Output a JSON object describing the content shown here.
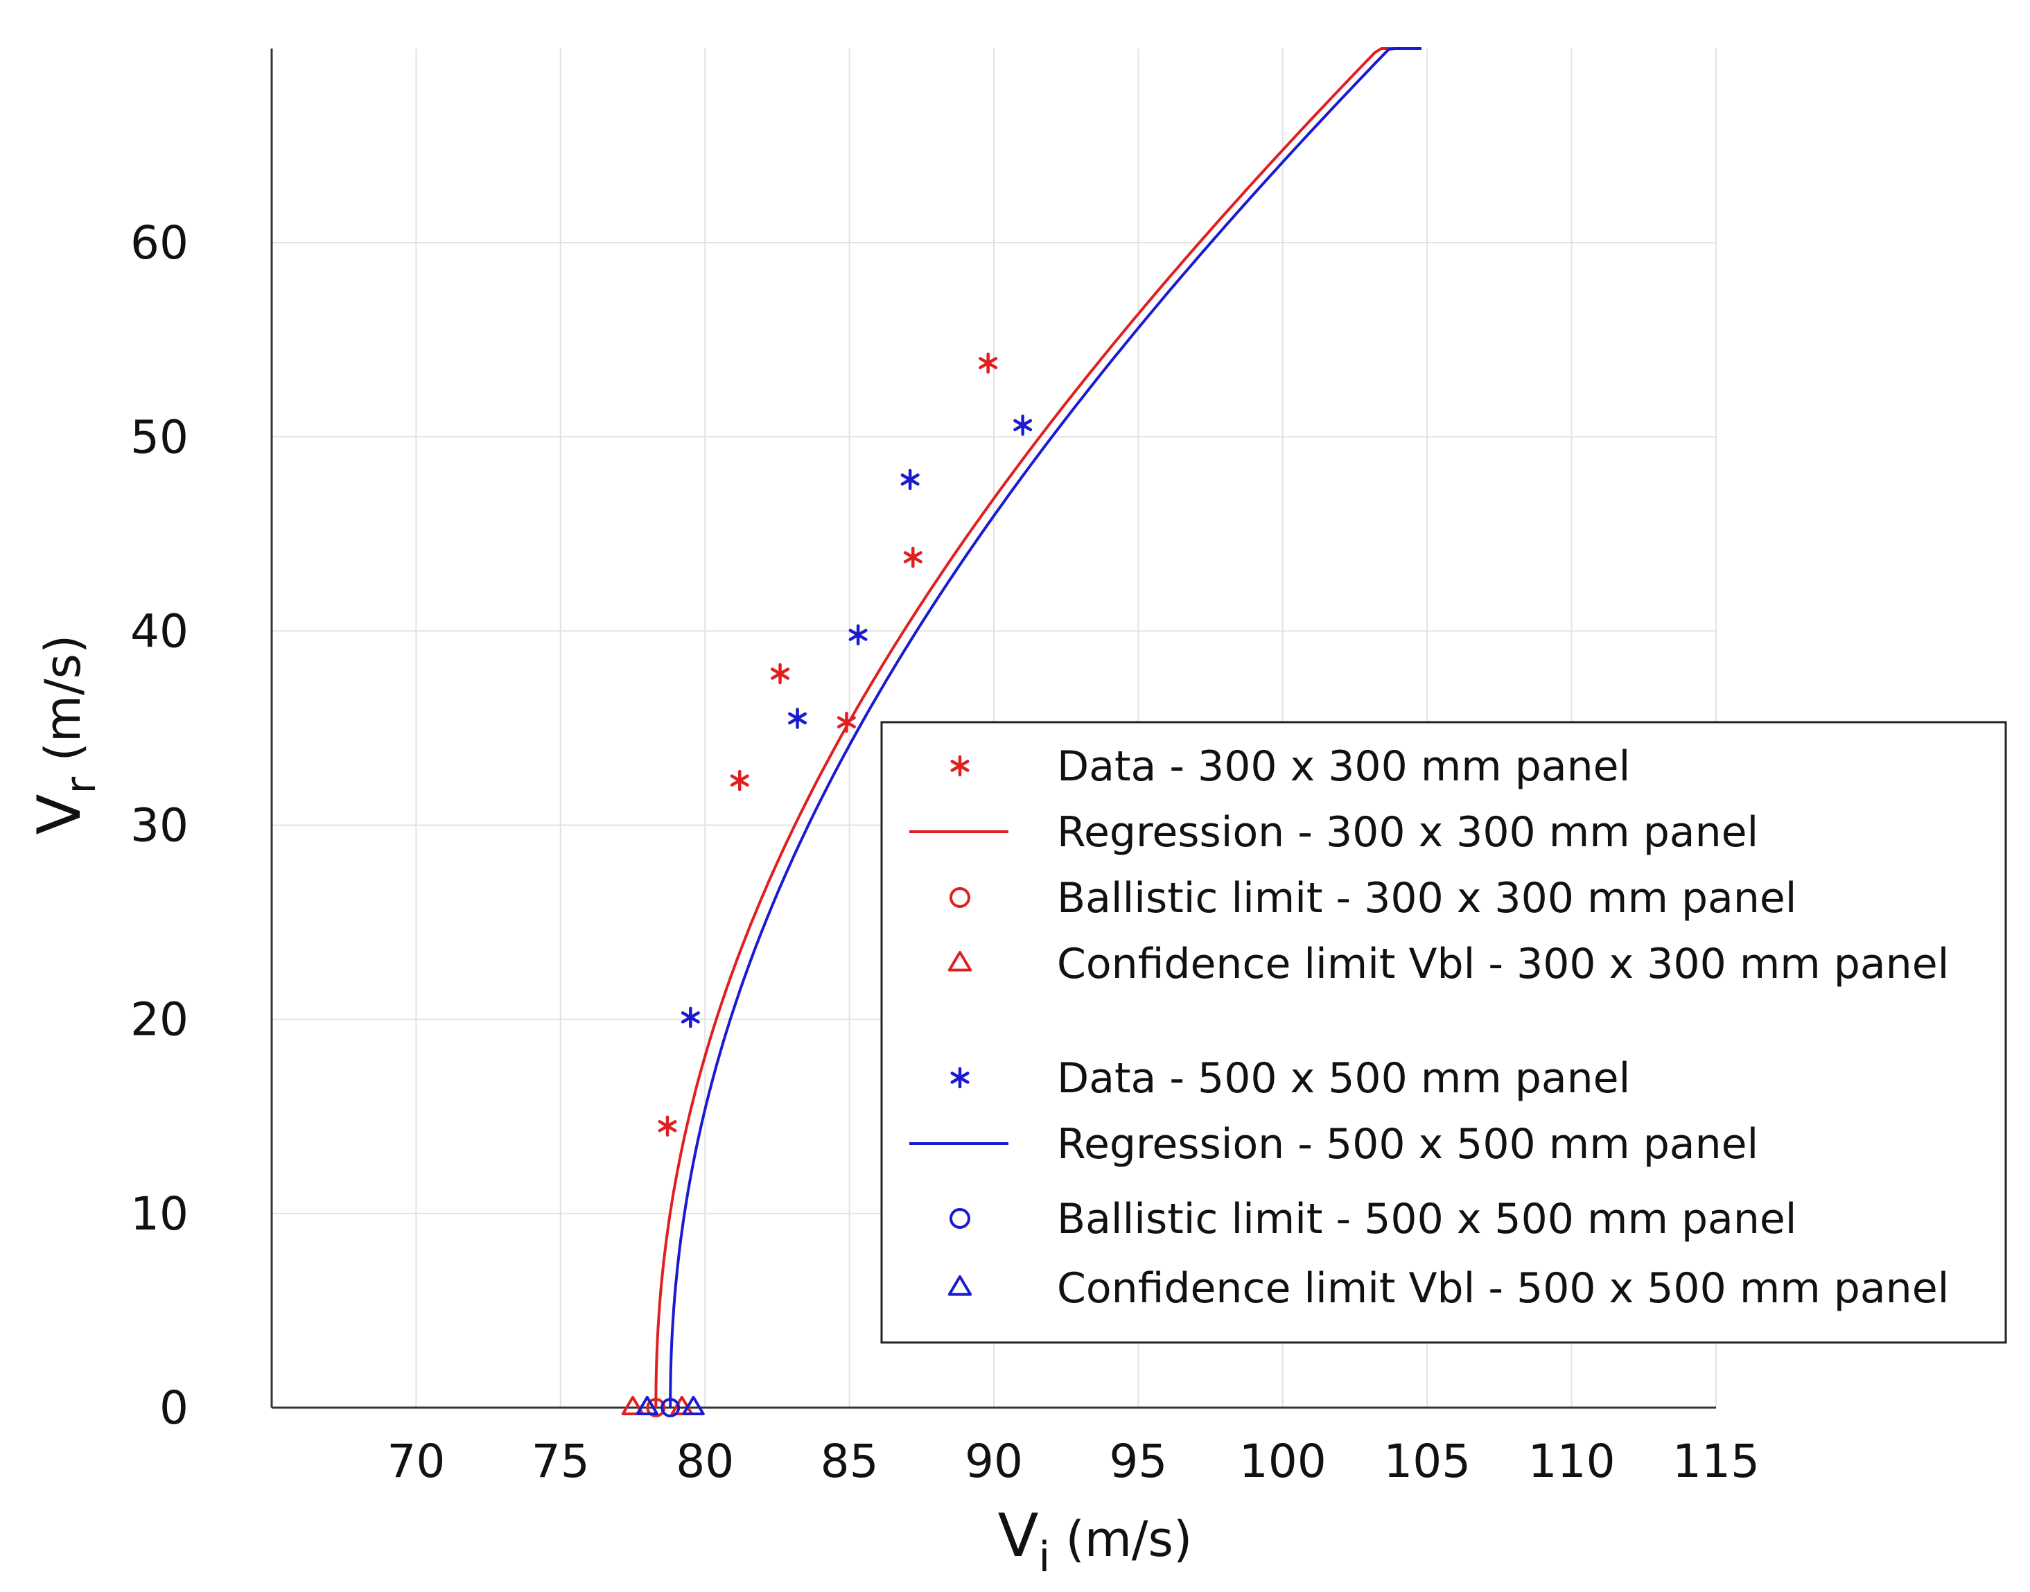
{
  "colors": {
    "series_300": "#e02020",
    "series_500": "#1a1ad0",
    "grid": "#e2e2e2",
    "axis": "#333333",
    "text": "#111111"
  },
  "chart_data": {
    "type": "scatter",
    "title": "",
    "xlabel": {
      "main": "V",
      "sub": "i",
      "unit": " (m/s)"
    },
    "ylabel": {
      "main": "V",
      "sub": "r",
      "unit": " (m/s)"
    },
    "xlim": [
      65,
      115
    ],
    "ylim": [
      0,
      70
    ],
    "x_ticks": [
      70,
      75,
      80,
      85,
      90,
      95,
      100,
      105,
      110,
      115
    ],
    "y_ticks": [
      0,
      10,
      20,
      30,
      40,
      50,
      60
    ],
    "grid": true,
    "legend_position": "lower-right",
    "series": [
      {
        "id": "data300",
        "name": "Data - 300 x 300 mm panel",
        "kind": "scatter",
        "marker": "asterisk",
        "color": "#e02020",
        "points": [
          [
            78.7,
            14.5
          ],
          [
            81.2,
            32.3
          ],
          [
            82.6,
            37.8
          ],
          [
            84.9,
            35.3
          ],
          [
            87.2,
            43.8
          ],
          [
            89.8,
            53.8
          ]
        ]
      },
      {
        "id": "reg300",
        "name": "Regression - 300 x 300 mm panel",
        "kind": "line",
        "color": "#e02020",
        "model": {
          "vbl": 78.3,
          "exponent": 2.1,
          "vi_max": 104.8
        }
      },
      {
        "id": "bl300",
        "name": "Ballistic limit - 300 x 300 mm panel",
        "kind": "scatter",
        "marker": "circle",
        "color": "#e02020",
        "points": [
          [
            78.3,
            0
          ]
        ]
      },
      {
        "id": "cl300",
        "name": "Confidence limit Vbl - 300 x 300 mm panel",
        "kind": "scatter",
        "marker": "triangle",
        "color": "#e02020",
        "points": [
          [
            77.5,
            0
          ],
          [
            79.2,
            0
          ]
        ]
      },
      {
        "id": "data500",
        "name": "Data - 500 x 500 mm panel",
        "kind": "scatter",
        "marker": "asterisk",
        "color": "#1a1ad0",
        "points": [
          [
            79.5,
            20.1
          ],
          [
            83.2,
            35.5
          ],
          [
            85.3,
            39.8
          ],
          [
            87.1,
            47.8
          ],
          [
            91.0,
            50.6
          ]
        ]
      },
      {
        "id": "reg500",
        "name": "Regression - 500 x 500 mm panel",
        "kind": "line",
        "color": "#1a1ad0",
        "model": {
          "vbl": 78.8,
          "exponent": 2.1,
          "vi_max": 104.8
        }
      },
      {
        "id": "bl500",
        "name": "Ballistic limit - 500 x 500 mm panel",
        "kind": "scatter",
        "marker": "circle",
        "color": "#1a1ad0",
        "points": [
          [
            78.8,
            0
          ]
        ]
      },
      {
        "id": "cl500",
        "name": "Confidence limit Vbl - 500 x 500 mm panel",
        "kind": "scatter",
        "marker": "triangle",
        "color": "#1a1ad0",
        "points": [
          [
            78.0,
            0
          ],
          [
            79.6,
            0
          ]
        ]
      }
    ]
  }
}
